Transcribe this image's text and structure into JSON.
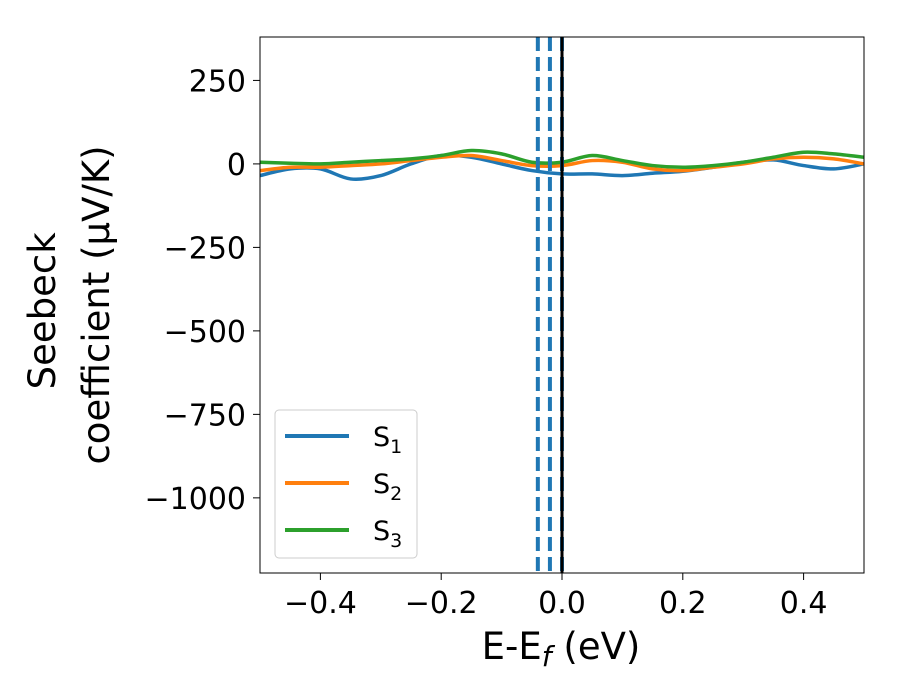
{
  "chart_data": {
    "type": "line",
    "title": "",
    "xlabel": {
      "main": "E-E",
      "subscript": "f",
      "units": " (eV)"
    },
    "ylabel": {
      "line1": "Seebeck",
      "line2": "coefficient  (μV/K)"
    },
    "xlim": [
      -0.5,
      0.5
    ],
    "ylim": [
      -1225,
      380
    ],
    "xticks": [
      -0.4,
      -0.2,
      0.0,
      0.2,
      0.4
    ],
    "xtick_labels": [
      "−0.4",
      "−0.2",
      "0.0",
      "0.2",
      "0.4"
    ],
    "yticks": [
      250,
      0,
      -250,
      -500,
      -750,
      -1000
    ],
    "ytick_labels": [
      "250",
      "0",
      "−250",
      "−500",
      "−750",
      "−1000"
    ],
    "legend_position": "lower-left",
    "series": [
      {
        "name": "S",
        "subscript": "1",
        "color": "#1f77b4",
        "x": [
          -0.5,
          -0.45,
          -0.4,
          -0.35,
          -0.3,
          -0.25,
          -0.2,
          -0.15,
          -0.1,
          -0.05,
          0.0,
          0.05,
          0.1,
          0.15,
          0.2,
          0.25,
          0.3,
          0.35,
          0.4,
          0.45,
          0.5
        ],
        "y": [
          -35,
          -15,
          -15,
          -45,
          -35,
          0,
          25,
          20,
          0,
          -20,
          -30,
          -30,
          -35,
          -28,
          -22,
          -10,
          5,
          12,
          -5,
          -15,
          0
        ]
      },
      {
        "name": "S",
        "subscript": "2",
        "color": "#ff7f0e",
        "x": [
          -0.5,
          -0.45,
          -0.4,
          -0.35,
          -0.3,
          -0.25,
          -0.2,
          -0.15,
          -0.1,
          -0.05,
          0.0,
          0.05,
          0.1,
          0.15,
          0.2,
          0.25,
          0.3,
          0.35,
          0.4,
          0.45,
          0.5
        ],
        "y": [
          -20,
          -10,
          -10,
          -5,
          0,
          10,
          20,
          25,
          10,
          -5,
          -5,
          10,
          5,
          -15,
          -20,
          -10,
          0,
          15,
          20,
          15,
          0
        ]
      },
      {
        "name": "S",
        "subscript": "3",
        "color": "#2ca02c",
        "x": [
          -0.5,
          -0.45,
          -0.4,
          -0.35,
          -0.3,
          -0.25,
          -0.2,
          -0.15,
          -0.1,
          -0.05,
          0.0,
          0.05,
          0.1,
          0.15,
          0.2,
          0.25,
          0.3,
          0.35,
          0.4,
          0.45,
          0.5
        ],
        "y": [
          5,
          2,
          0,
          5,
          10,
          15,
          25,
          40,
          30,
          5,
          5,
          25,
          10,
          -5,
          -10,
          -5,
          5,
          20,
          35,
          30,
          20
        ]
      }
    ],
    "vertical_lines": [
      {
        "x": -0.04,
        "style": "dashed",
        "color": "#1f77b4"
      },
      {
        "x": -0.02,
        "style": "dashed",
        "color": "#1f77b4"
      },
      {
        "x": 0.0,
        "style": "dashed",
        "color": "#1f77b4"
      },
      {
        "x": 0.0,
        "style": "solid",
        "color": "#000000"
      }
    ]
  }
}
